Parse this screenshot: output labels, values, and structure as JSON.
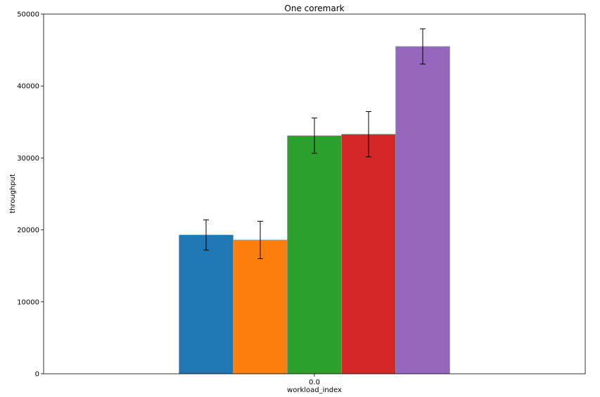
{
  "chart_data": {
    "type": "bar",
    "title": "One coremark",
    "xlabel": "workload_index",
    "ylabel": "throughput",
    "categories": [
      "0.0"
    ],
    "ylim": [
      0,
      50000
    ],
    "yticks": [
      0,
      10000,
      20000,
      30000,
      40000,
      50000
    ],
    "grid": false,
    "legend": "none",
    "series": [
      {
        "values": [
          19300
        ],
        "error": [
          2100
        ],
        "color": "#1f77b4"
      },
      {
        "values": [
          18600
        ],
        "error": [
          2600
        ],
        "color": "#ff7f0e"
      },
      {
        "values": [
          33100
        ],
        "error": [
          2450
        ],
        "color": "#2ca02c"
      },
      {
        "values": [
          33300
        ],
        "error": [
          3150
        ],
        "color": "#d62728"
      },
      {
        "values": [
          45500
        ],
        "error": [
          2450
        ],
        "color": "#9467bd"
      }
    ]
  }
}
